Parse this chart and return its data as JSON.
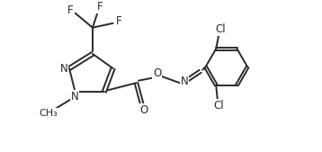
{
  "bg_color": "#ffffff",
  "line_color": "#2a2a2a",
  "line_width": 1.4,
  "font_size": 8.5,
  "figsize": [
    3.58,
    1.69
  ],
  "dpi": 100,
  "xlim": [
    0,
    10
  ],
  "ylim": [
    0,
    5
  ]
}
